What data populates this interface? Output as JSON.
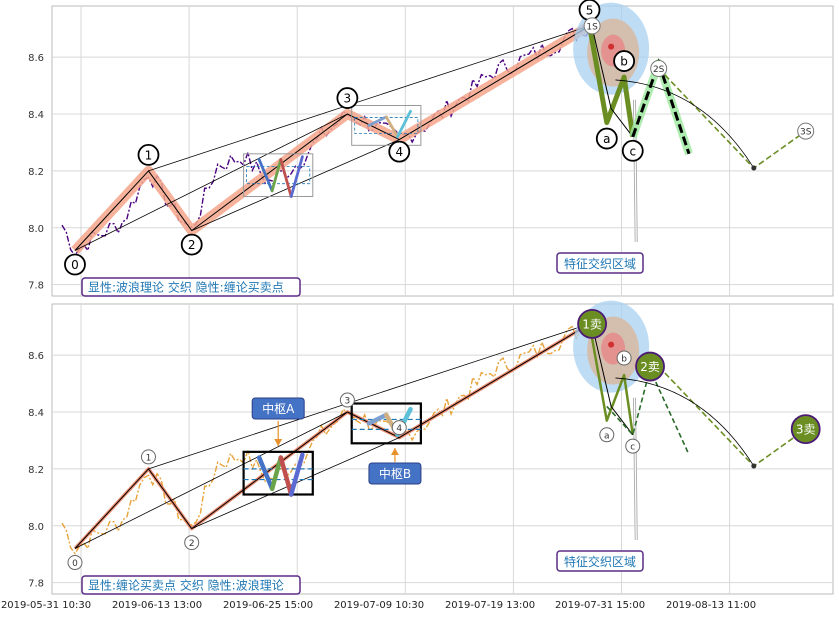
{
  "chart_data": [
    {
      "type": "line",
      "panel": "top",
      "ylim": [
        7.76,
        8.78
      ],
      "yticks": [
        7.8,
        8.0,
        8.2,
        8.4,
        8.6
      ],
      "ytick_labels": [
        "7.8",
        "8.0",
        "8.2",
        "8.4",
        "8.6"
      ],
      "legend_label": "显性:波浪理论 交织 隐性:缠论买卖点",
      "annotation": "特征交织区域",
      "wave_points": [
        {
          "label": "0",
          "t": 1.5,
          "y": 7.92
        },
        {
          "label": "1",
          "t": 10.0,
          "y": 8.2
        },
        {
          "label": "2",
          "t": 15.0,
          "y": 7.99
        },
        {
          "label": "3",
          "t": 33.0,
          "y": 8.4
        },
        {
          "label": "4",
          "t": 39.0,
          "y": 8.31
        },
        {
          "label": "5",
          "t": 61.0,
          "y": 8.71
        }
      ],
      "correction_points": [
        {
          "label": "a",
          "t": 63.0,
          "y": 8.37
        },
        {
          "label": "b",
          "t": 65.0,
          "y": 8.53
        },
        {
          "label": "c",
          "t": 66.0,
          "y": 8.32
        }
      ],
      "projection_labels": [
        "1S",
        "2S",
        "3S"
      ],
      "projection_points": [
        {
          "t": 66.5,
          "y": 8.32
        },
        {
          "t": 69.0,
          "y": 8.56
        },
        {
          "t": 80.0,
          "y": 8.21
        },
        {
          "t": 86.0,
          "y": 8.34
        }
      ]
    },
    {
      "type": "line",
      "panel": "bottom",
      "ylim": [
        7.76,
        8.78
      ],
      "yticks": [
        7.8,
        8.0,
        8.2,
        8.4,
        8.6
      ],
      "ytick_labels": [
        "7.8",
        "8.0",
        "8.2",
        "8.4",
        "8.6"
      ],
      "legend_label": "显性:缠论买卖点 交织 隐性:波浪理论",
      "annotation": "特征交织区域",
      "pivot_labels": [
        "中枢A",
        "中枢B"
      ],
      "sell_labels": [
        "1卖",
        "2卖",
        "3卖"
      ],
      "wave_labels": [
        "0",
        "1",
        "2",
        "3",
        "4"
      ],
      "correction_labels": [
        "a",
        "b",
        "c"
      ],
      "xtick_labels": [
        "2019-05-31 10:30",
        "2019-06-13 13:00",
        "2019-06-25 15:00",
        "2019-07-09 10:30",
        "2019-07-19 13:00",
        "2019-07-31 15:00",
        "2019-08-13 11:00"
      ]
    }
  ],
  "colors": {
    "top_price": "#4b0082",
    "bottom_price": "#e8a33a",
    "wave_band": "#f4a58a",
    "green": "#6b8e23",
    "text_blue": "#1f77b4",
    "pivot_fill": "#4472c4"
  }
}
